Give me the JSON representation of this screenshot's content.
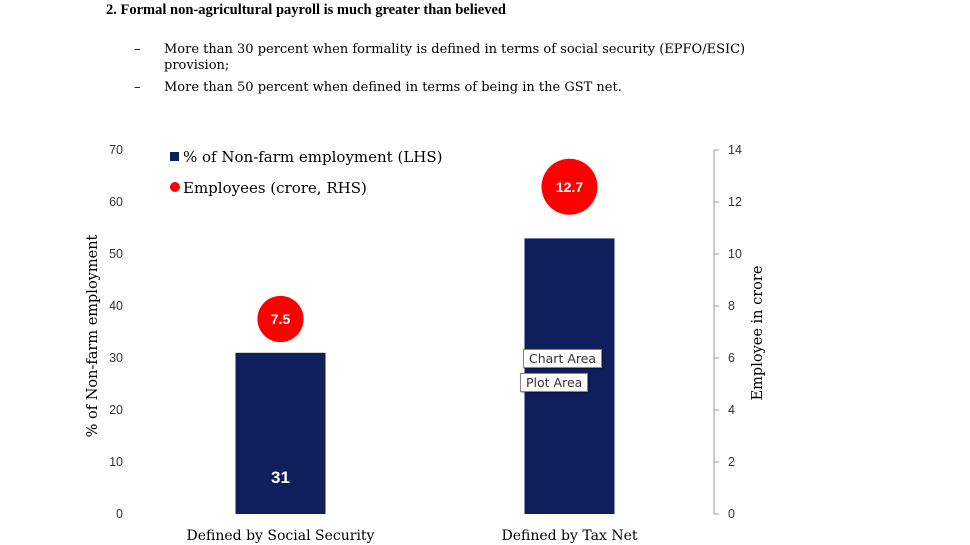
{
  "heading": "2. Formal non-agricultural payroll is much greater than believed",
  "bullets": [
    "More than 30 percent when formality is defined in terms of social security (EPFO/ESIC) provision;",
    "More than 50 percent when defined in terms of being in the GST net."
  ],
  "bullet_marker": "–",
  "tooltips": {
    "chart_area": "Chart Area",
    "plot_area": "Plot Area"
  },
  "colors": {
    "bar": "#0f1f5c",
    "bubble": "#ff0000"
  },
  "chart_data": {
    "type": "bar",
    "categories": [
      "Defined by Social Security",
      "Defined by Tax Net"
    ],
    "series": [
      {
        "name": "% of Non-farm employment (LHS)",
        "type": "bar",
        "axis": "left",
        "values": [
          31,
          53
        ],
        "data_labels": [
          "31",
          ""
        ]
      },
      {
        "name": "Employees (crore, RHS)",
        "type": "scatter",
        "axis": "right",
        "values": [
          7.5,
          12.7
        ],
        "data_labels": [
          "7.5",
          "12.7"
        ]
      }
    ],
    "ylabel": "% of Non-farm employment",
    "y2label": "Employee in crore",
    "ylim": [
      0,
      70
    ],
    "y2lim": [
      0,
      14
    ],
    "yticks": [
      0,
      10,
      20,
      30,
      40,
      50,
      60,
      70
    ],
    "y2ticks": [
      0,
      2,
      4,
      6,
      8,
      10,
      12,
      14
    ],
    "legend": "top-left"
  }
}
